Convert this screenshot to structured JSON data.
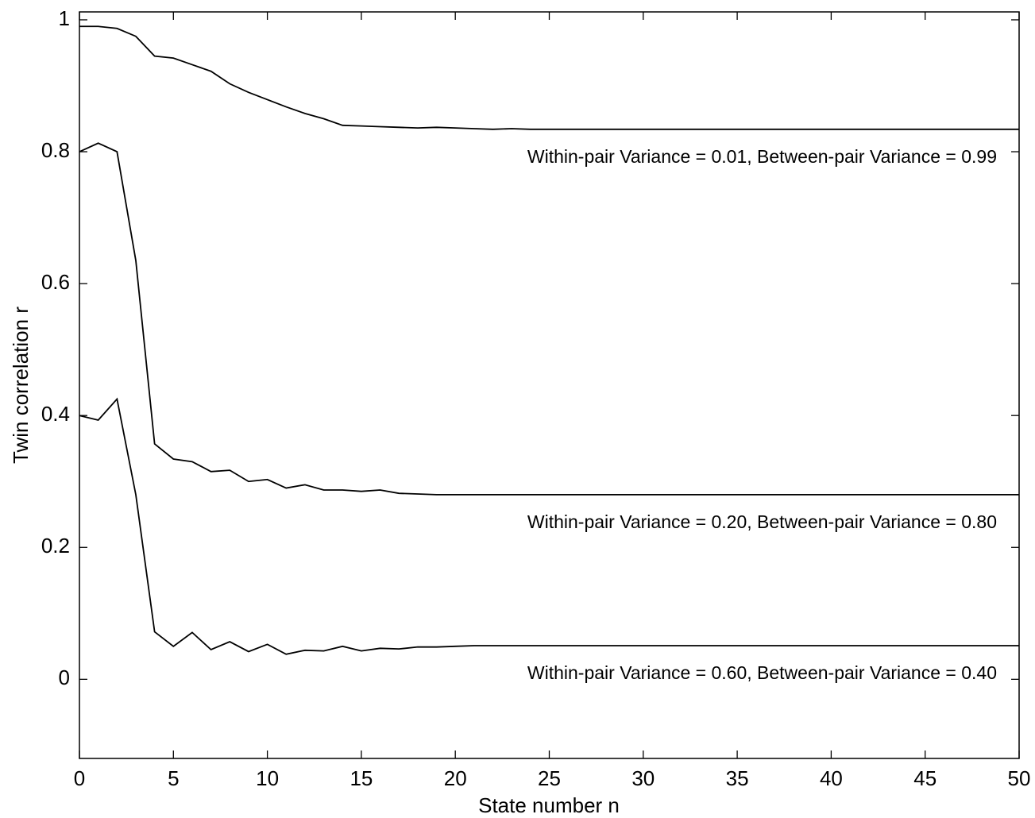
{
  "chart_data": {
    "type": "line",
    "xlabel": "State number n",
    "ylabel": "Twin correlation r",
    "x": [
      0,
      1,
      2,
      3,
      4,
      5,
      6,
      7,
      8,
      9,
      10,
      11,
      12,
      13,
      14,
      15,
      16,
      17,
      18,
      19,
      20,
      21,
      22,
      23,
      24,
      25,
      26,
      27,
      28,
      29,
      30,
      31,
      32,
      33,
      34,
      35,
      36,
      37,
      38,
      39,
      40,
      41,
      42,
      43,
      44,
      45,
      46,
      47,
      48,
      49,
      50
    ],
    "series": [
      {
        "name": "Within-pair Variance = 0.01, Between-pair Variance = 0.99",
        "color": "#000000",
        "values": [
          0.99,
          0.99,
          0.987,
          0.975,
          0.945,
          0.942,
          0.932,
          0.922,
          0.903,
          0.89,
          0.879,
          0.868,
          0.858,
          0.85,
          0.84,
          0.839,
          0.838,
          0.837,
          0.836,
          0.837,
          0.836,
          0.835,
          0.834,
          0.835,
          0.834,
          0.834,
          0.834,
          0.834,
          0.834,
          0.834,
          0.834,
          0.834,
          0.834,
          0.834,
          0.834,
          0.834,
          0.834,
          0.834,
          0.834,
          0.834,
          0.834,
          0.834,
          0.834,
          0.834,
          0.834,
          0.834,
          0.834,
          0.834,
          0.834,
          0.834,
          0.834
        ]
      },
      {
        "name": "Within-pair Variance = 0.20, Between-pair Variance = 0.80",
        "color": "#000000",
        "values": [
          0.8,
          0.813,
          0.8,
          0.635,
          0.357,
          0.334,
          0.33,
          0.315,
          0.317,
          0.3,
          0.303,
          0.29,
          0.295,
          0.287,
          0.287,
          0.285,
          0.287,
          0.282,
          0.281,
          0.28,
          0.28,
          0.28,
          0.28,
          0.28,
          0.28,
          0.28,
          0.28,
          0.28,
          0.28,
          0.28,
          0.28,
          0.28,
          0.28,
          0.28,
          0.28,
          0.28,
          0.28,
          0.28,
          0.28,
          0.28,
          0.28,
          0.28,
          0.28,
          0.28,
          0.28,
          0.28,
          0.28,
          0.28,
          0.28,
          0.28,
          0.28
        ]
      },
      {
        "name": "Within-pair Variance = 0.60, Between-pair Variance = 0.40",
        "color": "#000000",
        "values": [
          0.4,
          0.393,
          0.425,
          0.28,
          0.072,
          0.05,
          0.071,
          0.045,
          0.057,
          0.042,
          0.053,
          0.038,
          0.044,
          0.043,
          0.05,
          0.043,
          0.047,
          0.046,
          0.049,
          0.049,
          0.05,
          0.051,
          0.051,
          0.051,
          0.051,
          0.051,
          0.051,
          0.051,
          0.051,
          0.051,
          0.051,
          0.051,
          0.051,
          0.051,
          0.051,
          0.051,
          0.051,
          0.051,
          0.051,
          0.051,
          0.051,
          0.051,
          0.051,
          0.051,
          0.051,
          0.051,
          0.051,
          0.051,
          0.051,
          0.051,
          0.051
        ]
      }
    ],
    "xlim": [
      0,
      50
    ],
    "xticks": [
      0,
      5,
      10,
      15,
      20,
      25,
      30,
      35,
      40,
      45,
      50
    ],
    "ylim": [
      -0.12,
      1.012
    ],
    "yticks": [
      0,
      0.2,
      0.4,
      0.6,
      0.8,
      1
    ],
    "grid": false
  }
}
